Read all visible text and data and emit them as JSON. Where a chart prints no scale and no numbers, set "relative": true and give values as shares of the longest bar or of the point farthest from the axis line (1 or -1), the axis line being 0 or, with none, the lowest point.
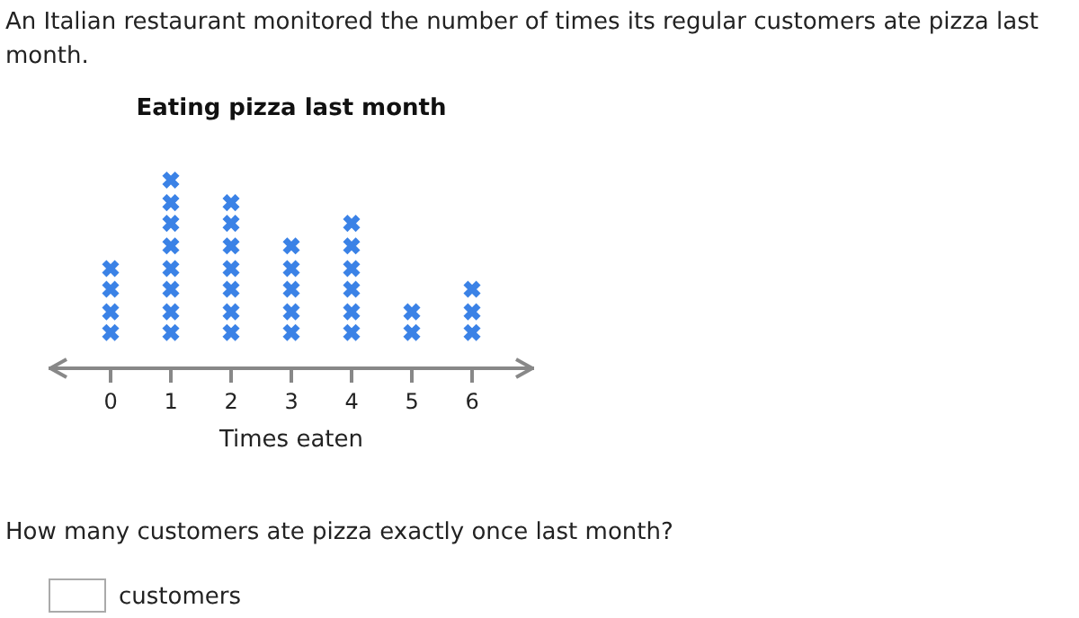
{
  "chart_data": {
    "type": "scatter",
    "title": "Eating pizza last month",
    "xlabel": "Times eaten",
    "relative": true,
    "x": [
      0,
      0,
      0,
      0,
      1,
      1,
      1,
      1,
      1,
      1,
      1,
      1,
      2,
      2,
      2,
      2,
      2,
      2,
      2,
      3,
      3,
      3,
      3,
      3,
      4,
      4,
      4,
      4,
      4,
      4,
      5,
      5,
      6,
      6,
      6
    ],
    "values": [
      0.19,
      0.3,
      0.42,
      0.53,
      0.19,
      0.3,
      0.42,
      0.53,
      0.65,
      0.77,
      0.88,
      1,
      0.19,
      0.3,
      0.42,
      0.53,
      0.65,
      0.77,
      0.88,
      0.19,
      0.3,
      0.42,
      0.53,
      0.65,
      0.19,
      0.3,
      0.42,
      0.53,
      0.65,
      0.77,
      0.19,
      0.3,
      0.19,
      0.3,
      0.42
    ],
    "color": "#3b82e6",
    "marker": "cross",
    "xlim": [
      -1,
      7
    ],
    "xticks": [
      0,
      1,
      2,
      3,
      4,
      5,
      6
    ],
    "grid": false,
    "legend": false,
    "tick_labels": "x",
    "annotations": [
      "An Italian restaurant monitored the number of times its regular customers ate pizza last month.",
      "How many customers ate pizza exactly once last month?",
      "customers"
    ]
  }
}
